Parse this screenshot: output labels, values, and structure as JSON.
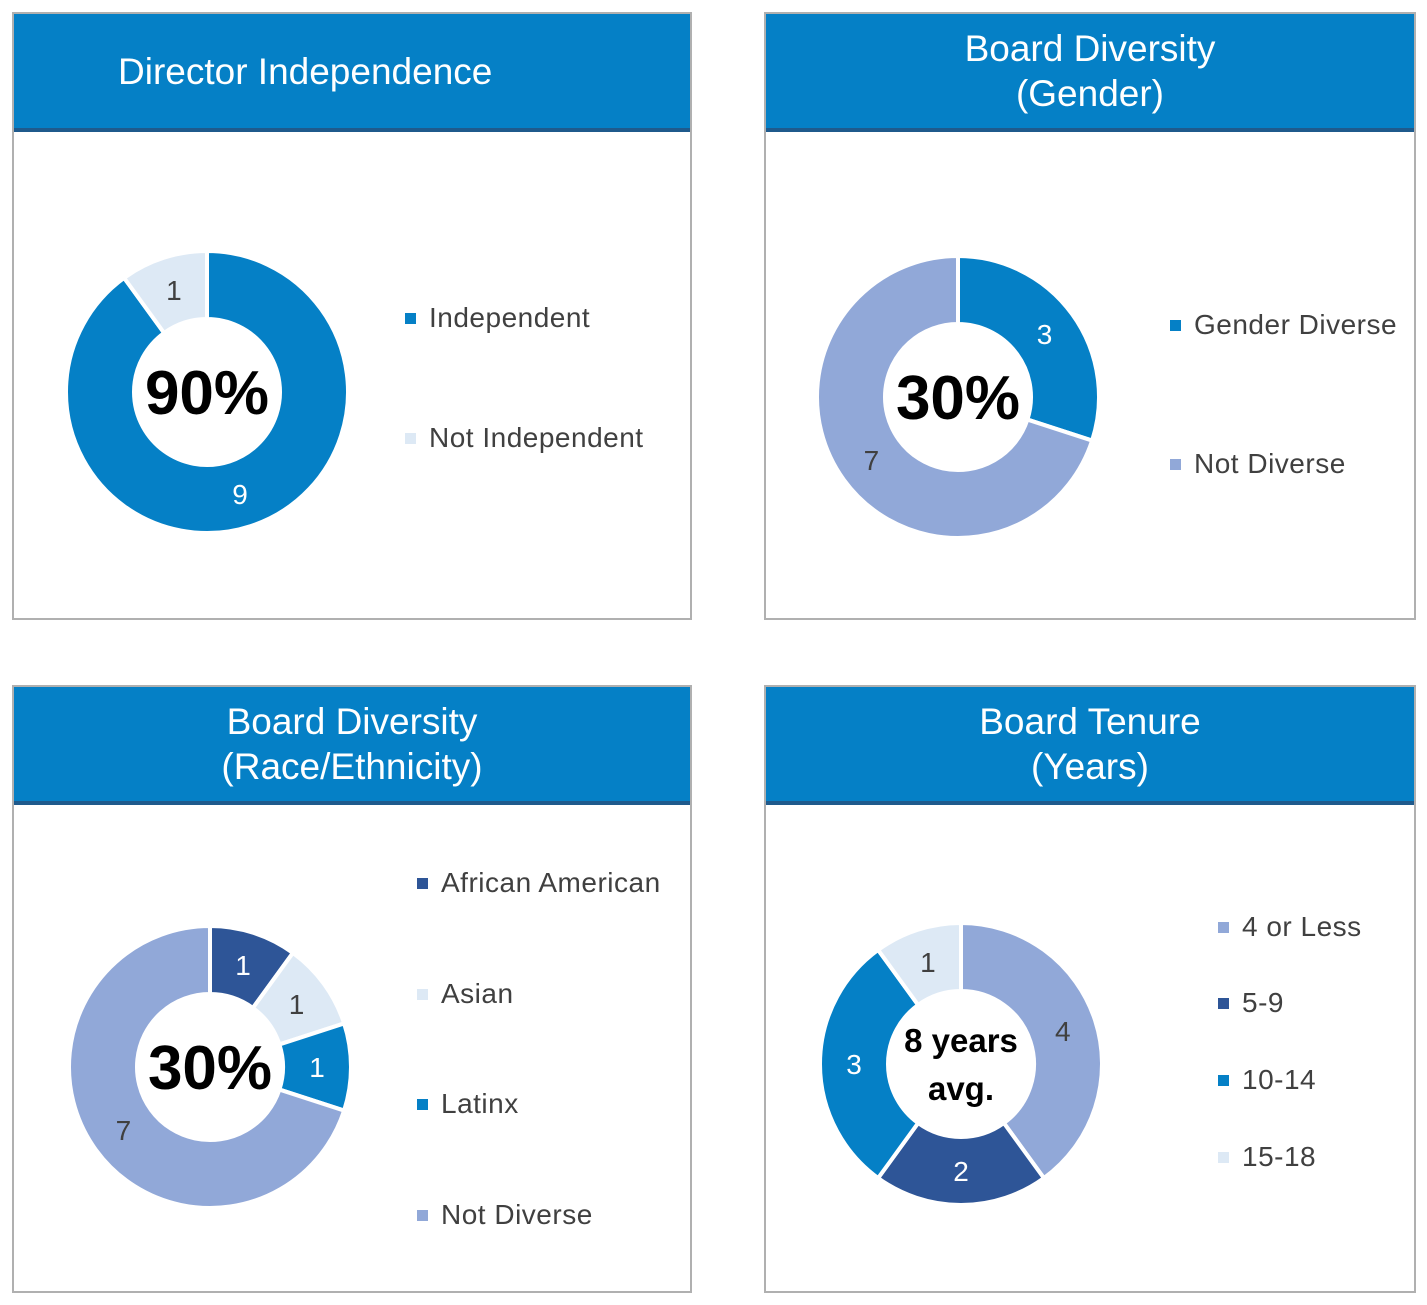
{
  "chart_data": [
    {
      "type": "pie",
      "title": "Director Independence",
      "categories": [
        "Independent",
        "Not Independent"
      ],
      "values": [
        9,
        1
      ],
      "colors": [
        "#0580c6",
        "#dde9f5"
      ],
      "center_label": "90%",
      "legend_placement": "right"
    },
    {
      "type": "pie",
      "title": "Board Diversity\n(Gender)",
      "categories": [
        "Gender Diverse",
        "Not Diverse"
      ],
      "values": [
        3,
        7
      ],
      "colors": [
        "#0580c6",
        "#91a8d8"
      ],
      "center_label": "30%",
      "legend_placement": "right"
    },
    {
      "type": "pie",
      "title": "Board Diversity\n(Race/Ethnicity)",
      "categories": [
        "African American",
        "Asian",
        "Latinx",
        "Not Diverse"
      ],
      "values": [
        1,
        1,
        1,
        7
      ],
      "colors": [
        "#2e5597",
        "#dde9f5",
        "#0580c6",
        "#91a8d8"
      ],
      "center_label": "30%",
      "legend_placement": "right"
    },
    {
      "type": "pie",
      "title": "Board Tenure\n(Years)",
      "categories": [
        "4 or Less",
        "5-9",
        "10-14",
        "15-18"
      ],
      "values": [
        4,
        2,
        3,
        1
      ],
      "colors": [
        "#91a8d8",
        "#2e5597",
        "#0580c6",
        "#dde9f5"
      ],
      "center_label": "8 years\navg.",
      "legend_placement": "right"
    }
  ]
}
